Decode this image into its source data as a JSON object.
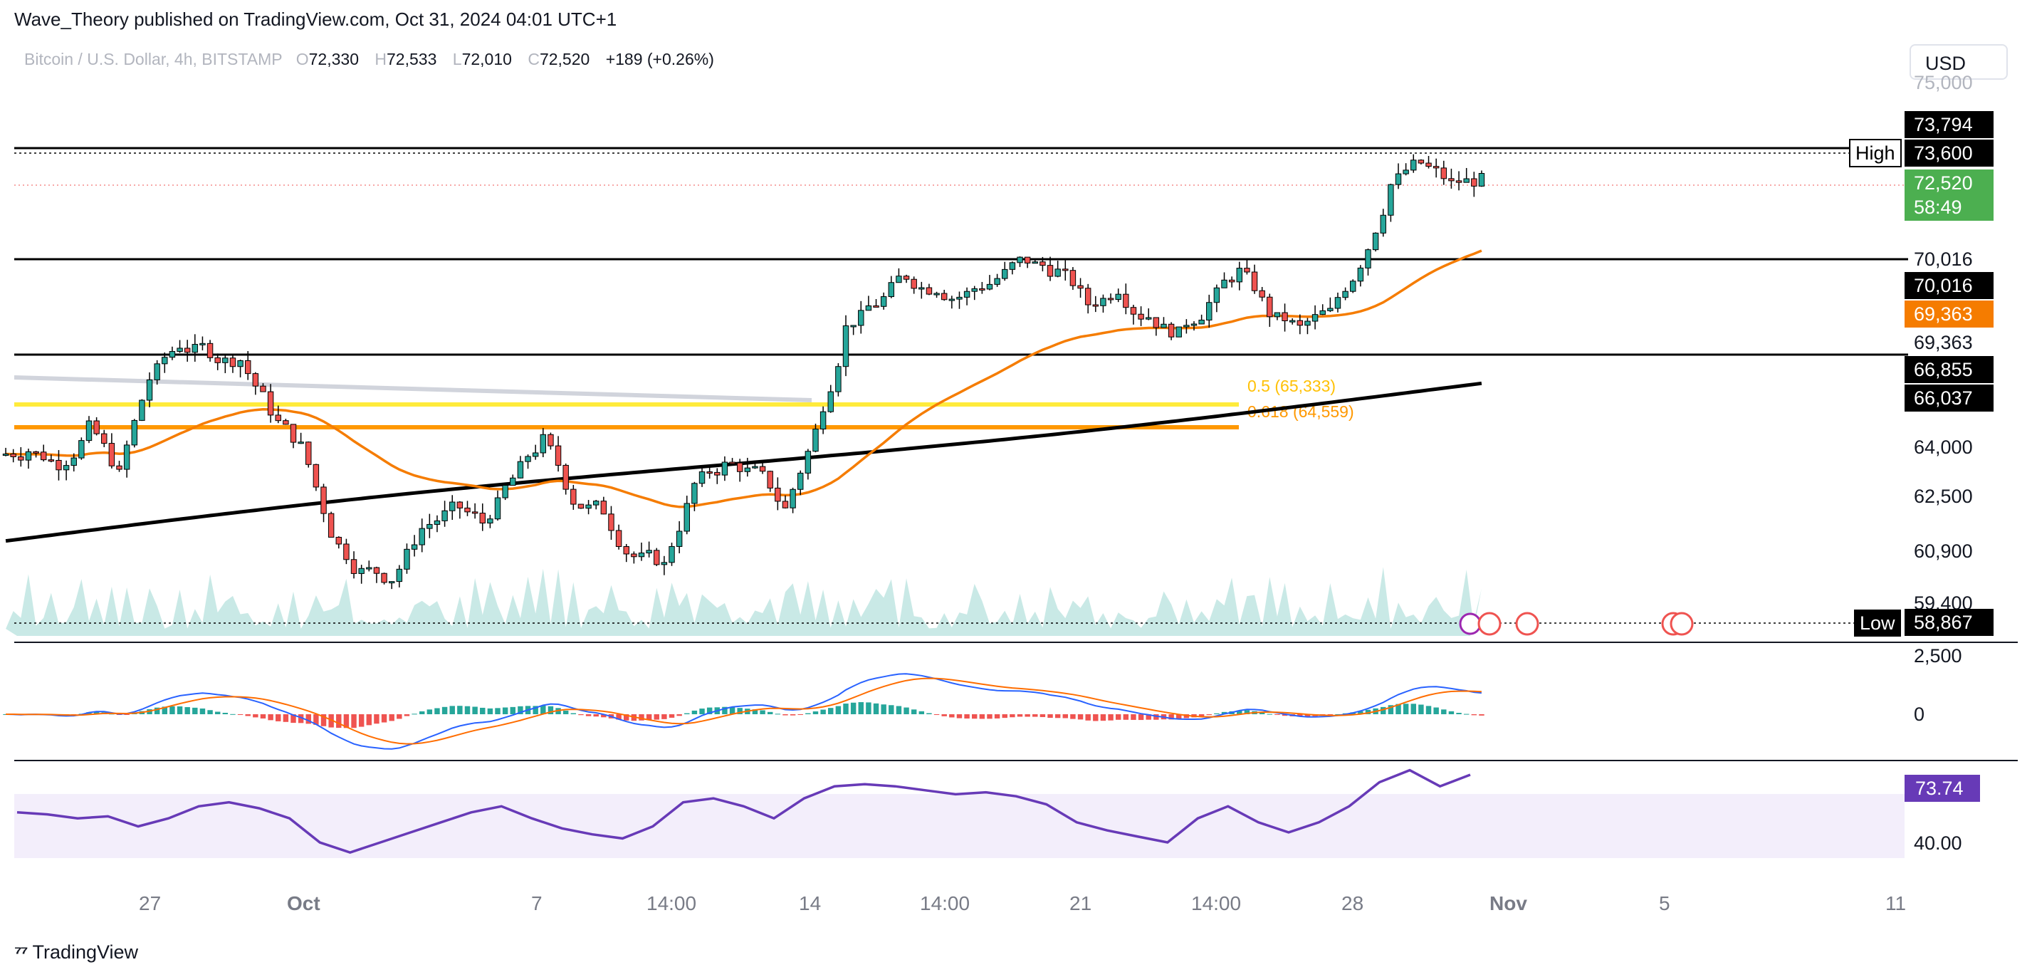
{
  "header": {
    "publisher": "Wave_Theory published on TradingView.com, Oct 31, 2024 04:01 UTC+1",
    "symbol": "Bitcoin / U.S. Dollar, 4h, BITSTAMP",
    "o_label": "O",
    "o": "72,330",
    "h_label": "H",
    "h": "72,533",
    "l_label": "L",
    "l": "72,010",
    "c_label": "C",
    "c": "72,520",
    "change": "+189 (+0.26%)"
  },
  "currency_button": "USD",
  "brand": "TradingView",
  "colors": {
    "up": "#26a69a",
    "down": "#ef5350",
    "ema50": "#f57c00",
    "ema200": "#000000",
    "fib_yellow": "#ffeb3b",
    "fib_orange": "#ff9800",
    "rsi": "#673ab7",
    "macd": "#2962ff",
    "signal": "#ff6d00",
    "last_price": "#4caf50"
  },
  "chart_data": [
    {
      "type": "line",
      "name": "price-pane",
      "x": [
        "27",
        "Oct",
        "7",
        "14:00",
        "14",
        "14:00",
        "21",
        "14:00",
        "28",
        "Nov",
        "5",
        "11"
      ],
      "ylim": [
        56000,
        76000
      ],
      "y_ticks": [
        "64,000",
        "62,500",
        "60,900",
        "59,400",
        "70,016",
        "69,363",
        "66,855"
      ],
      "close_series": [
        63900,
        63500,
        64600,
        63100,
        66200,
        67300,
        67100,
        66800,
        65200,
        64000,
        61300,
        60000,
        59800,
        61400,
        62000,
        61600,
        63000,
        64200,
        62300,
        62000,
        60500,
        60200,
        62800,
        63400,
        63200,
        62000,
        64500,
        67800,
        68600,
        69500,
        69100,
        68900,
        69400,
        70000,
        69600,
        68600,
        69100,
        68200,
        67600,
        68600,
        69600,
        68300,
        67800,
        68300,
        69900,
        72400,
        73100,
        72400,
        72520
      ],
      "levels": [
        {
          "name": "High",
          "value": 73794,
          "label": "73,794"
        },
        {
          "name": "High",
          "value": 73600,
          "label": "73,600"
        },
        {
          "name": "level",
          "value": 70016,
          "label": "70,016"
        },
        {
          "name": "level",
          "value": 69363,
          "label": "69,363"
        },
        {
          "name": "Low",
          "value": 58867,
          "label": "58,867"
        }
      ],
      "fib": [
        {
          "ratio": "0.5",
          "text": "0.5 (65,333)",
          "value": 65333
        },
        {
          "ratio": "0.618",
          "text": "0.618 (64,559)",
          "value": 64559
        }
      ],
      "price_labels": [
        {
          "text": "73,794",
          "bg": "#000000"
        },
        {
          "text": "73,600",
          "bg": "#000000"
        },
        {
          "text": "72,520",
          "bg": "#4caf50"
        },
        {
          "text": "58:49",
          "bg": "#4caf50"
        },
        {
          "text": "70,016",
          "bg": "#000000"
        },
        {
          "text": "69,363",
          "bg": "#f57c00"
        },
        {
          "text": "66,855",
          "bg": "#000000"
        },
        {
          "text": "66,037",
          "bg": "#000000"
        },
        {
          "text": "58,867",
          "bg": "#000000"
        }
      ],
      "level_tags": [
        "High",
        "Low"
      ],
      "ema50_last": "69,363",
      "ema200_last": "66,037"
    },
    {
      "type": "bar",
      "name": "macd-pane",
      "y_ticks": [
        "2,500",
        "0"
      ]
    },
    {
      "type": "line",
      "name": "rsi-pane",
      "y_ticks": [
        "40.00"
      ],
      "last_value": "73.74",
      "series": [
        {
          "values": [
            55,
            54,
            52,
            53,
            48,
            52,
            58,
            60,
            57,
            52,
            40,
            35,
            40,
            45,
            50,
            55,
            58,
            52,
            47,
            44,
            42,
            48,
            60,
            62,
            58,
            52,
            62,
            68,
            69,
            68,
            66,
            64,
            65,
            63,
            59,
            50,
            46,
            43,
            40,
            52,
            58,
            50,
            45,
            50,
            58,
            70,
            76,
            68,
            73.74
          ]
        }
      ]
    }
  ]
}
